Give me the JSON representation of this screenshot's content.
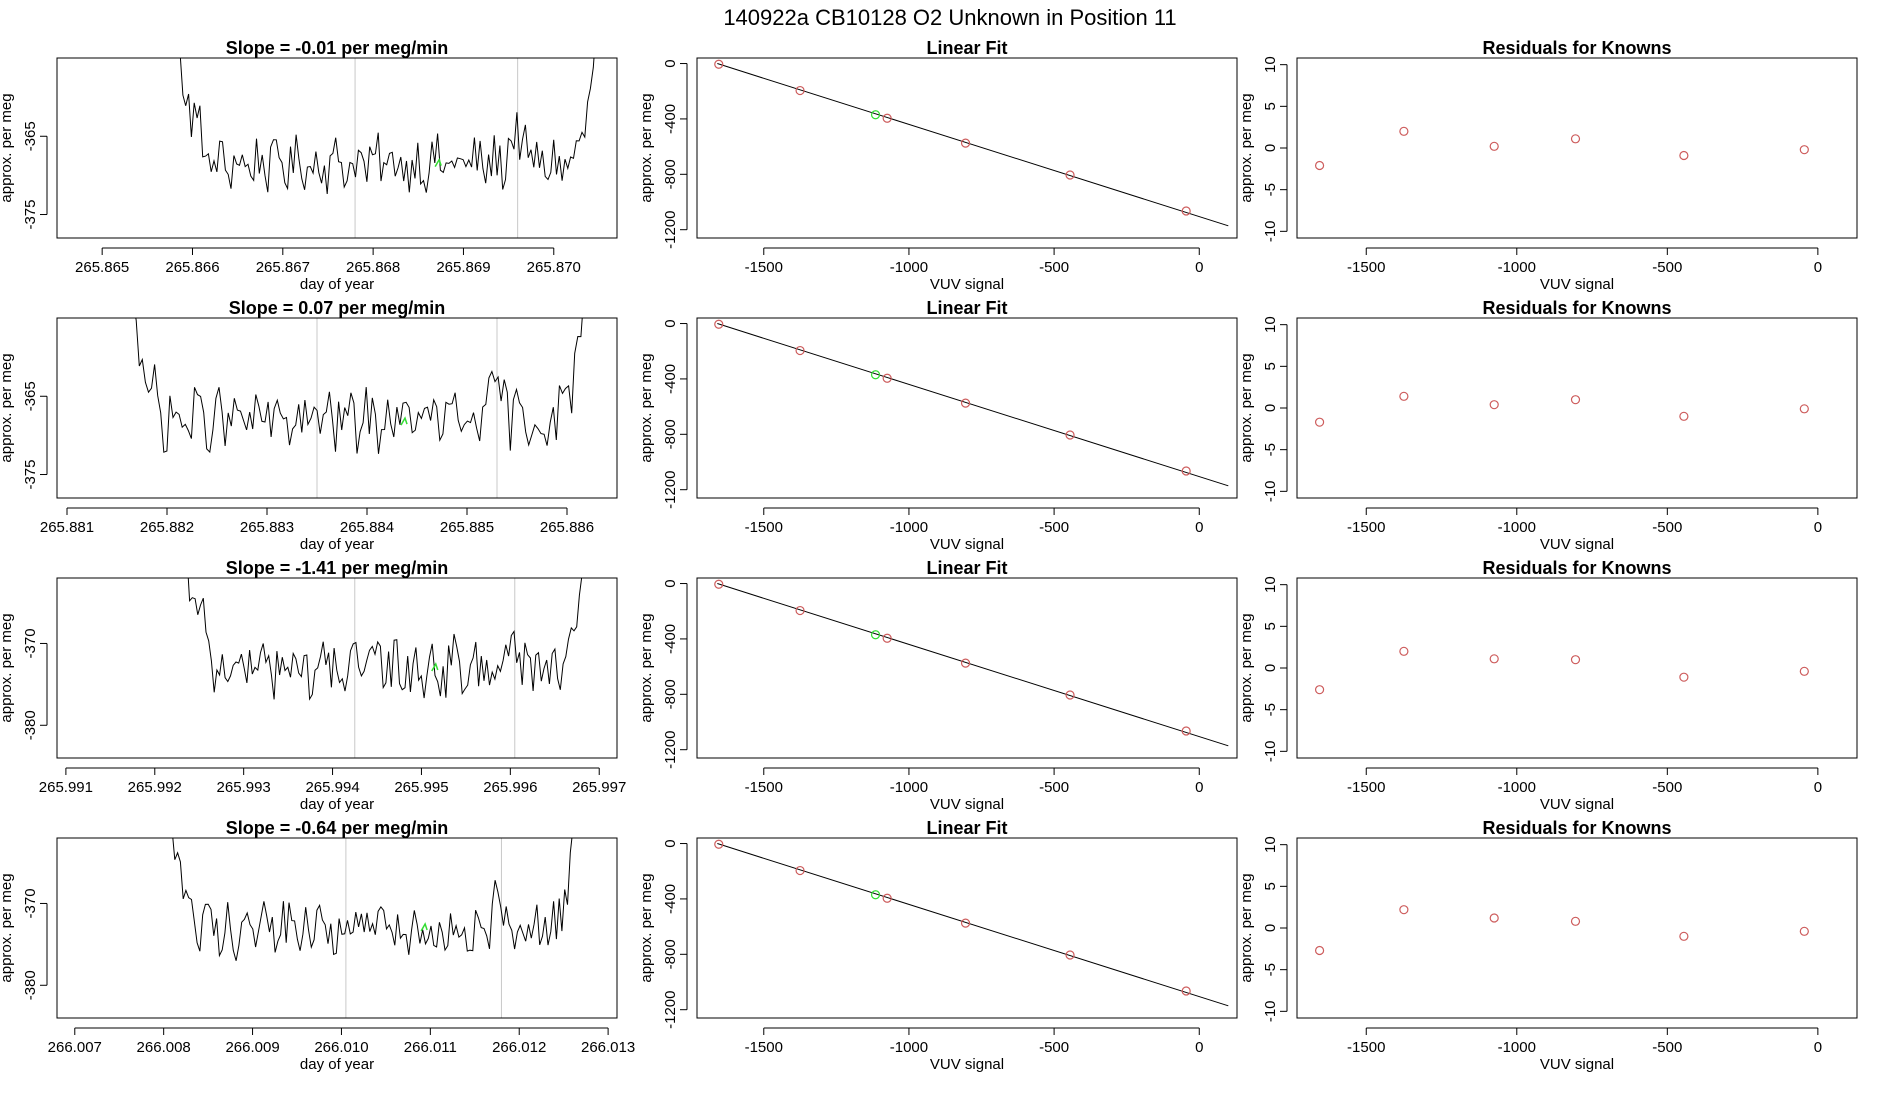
{
  "suptitle": "140922a      CB10128    O2 Unknown in Position  11",
  "colors": {
    "known": "#cd5c5c",
    "unknown": "#33dd33",
    "series": "#000000",
    "vline": "#c8c8c8"
  },
  "chart_data": [
    {
      "row": 0,
      "type": "line",
      "title": "Slope =  -0.01  per meg/min",
      "xlabel": "day of year",
      "ylabel": "approx. per meg",
      "xlim": [
        265.8645,
        265.8707
      ],
      "ylim": [
        -378,
        -355
      ],
      "xticks": [
        265.865,
        265.866,
        265.867,
        265.868,
        265.869,
        265.87
      ],
      "xtick_labels": [
        "265.865",
        "265.866",
        "265.867",
        "265.868",
        "265.869",
        "265.870"
      ],
      "yticks": [
        -375,
        -365
      ],
      "ytick_labels": [
        "-375",
        "-365"
      ],
      "x_start": 265.8658,
      "x_end": 265.8705,
      "vlines": [
        265.8678,
        265.8696
      ],
      "unknown_point": {
        "x": 265.86872,
        "y": -368.5
      },
      "mean": -368.5,
      "noise": 3.0
    },
    {
      "row": 0,
      "type": "scatter",
      "title": "Linear Fit",
      "xlabel": "VUV signal",
      "ylabel": "approx. per meg",
      "xlim": [
        -1730,
        130
      ],
      "ylim": [
        -1260,
        40
      ],
      "xticks": [
        -1500,
        -1000,
        -500,
        0
      ],
      "xtick_labels": [
        "-1500",
        "-1000",
        "-500",
        "0"
      ],
      "yticks": [
        0,
        -400,
        -800,
        -1200
      ],
      "ytick_labels": [
        "0",
        "-400",
        "-800",
        "-1200"
      ],
      "fit_line": {
        "x": [
          -1660,
          100
        ],
        "y": [
          0,
          -1172
        ]
      },
      "known_points": {
        "x": [
          -1655,
          -1375,
          -1075,
          -805,
          -445,
          -45
        ],
        "y": [
          -5,
          -195,
          -395,
          -575,
          -805,
          -1065
        ]
      },
      "unknown_point": {
        "x": -1115,
        "y": -370
      }
    },
    {
      "row": 0,
      "type": "scatter",
      "title": "Residuals for Knowns",
      "xlabel": "VUV signal",
      "ylabel": "approx. per meg",
      "xlim": [
        -1730,
        130
      ],
      "ylim": [
        -10.8,
        10.8
      ],
      "xticks": [
        -1500,
        -1000,
        -500,
        0
      ],
      "xtick_labels": [
        "-1500",
        "-1000",
        "-500",
        "0"
      ],
      "yticks": [
        10,
        5,
        0,
        -5,
        -10
      ],
      "ytick_labels": [
        "10",
        "5",
        "0",
        "-5",
        "-10"
      ],
      "known_points": {
        "x": [
          -1655,
          -1375,
          -1075,
          -805,
          -445,
          -45
        ],
        "y": [
          -2.1,
          2.0,
          0.2,
          1.1,
          -0.9,
          -0.2
        ]
      }
    },
    {
      "row": 1,
      "type": "line",
      "title": "Slope =  0.07  per meg/min",
      "xlabel": "day of year",
      "ylabel": "approx. per meg",
      "xlim": [
        265.8809,
        265.8865
      ],
      "ylim": [
        -378,
        -355
      ],
      "xticks": [
        265.881,
        265.882,
        265.883,
        265.884,
        265.885,
        265.886
      ],
      "xtick_labels": [
        "265.881",
        "265.882",
        "265.883",
        "265.884",
        "265.885",
        "265.886"
      ],
      "yticks": [
        -375,
        -365
      ],
      "ytick_labels": [
        "-375",
        "-365"
      ],
      "x_start": 265.8816,
      "x_end": 265.8862,
      "vlines": [
        265.8835,
        265.8853
      ],
      "unknown_point": {
        "x": 265.88437,
        "y": -368.3
      },
      "mean": -368.0,
      "noise": 3.3
    },
    {
      "row": 1,
      "type": "scatter",
      "title": "Linear Fit",
      "xlabel": "VUV signal",
      "ylabel": "approx. per meg",
      "xlim": [
        -1730,
        130
      ],
      "ylim": [
        -1260,
        40
      ],
      "xticks": [
        -1500,
        -1000,
        -500,
        0
      ],
      "xtick_labels": [
        "-1500",
        "-1000",
        "-500",
        "0"
      ],
      "yticks": [
        0,
        -400,
        -800,
        -1200
      ],
      "ytick_labels": [
        "0",
        "-400",
        "-800",
        "-1200"
      ],
      "fit_line": {
        "x": [
          -1660,
          100
        ],
        "y": [
          0,
          -1172
        ]
      },
      "known_points": {
        "x": [
          -1655,
          -1375,
          -1075,
          -805,
          -445,
          -45
        ],
        "y": [
          -5,
          -195,
          -395,
          -575,
          -805,
          -1065
        ]
      },
      "unknown_point": {
        "x": -1115,
        "y": -370
      }
    },
    {
      "row": 1,
      "type": "scatter",
      "title": "Residuals for Knowns",
      "xlabel": "VUV signal",
      "ylabel": "approx. per meg",
      "xlim": [
        -1730,
        130
      ],
      "ylim": [
        -10.8,
        10.8
      ],
      "xticks": [
        -1500,
        -1000,
        -500,
        0
      ],
      "xtick_labels": [
        "-1500",
        "-1000",
        "-500",
        "0"
      ],
      "yticks": [
        10,
        5,
        0,
        -5,
        -10
      ],
      "ytick_labels": [
        "10",
        "5",
        "0",
        "-5",
        "-10"
      ],
      "known_points": {
        "x": [
          -1655,
          -1375,
          -1075,
          -805,
          -445,
          -45
        ],
        "y": [
          -1.7,
          1.4,
          0.4,
          1.0,
          -1.0,
          -0.1
        ]
      }
    },
    {
      "row": 2,
      "type": "line",
      "title": "Slope =  -1.41  per meg/min",
      "xlabel": "day of year",
      "ylabel": "approx. per meg",
      "xlim": [
        265.9909,
        265.9972
      ],
      "ylim": [
        -384,
        -362
      ],
      "xticks": [
        265.991,
        265.992,
        265.993,
        265.994,
        265.995,
        265.996,
        265.997
      ],
      "xtick_labels": [
        "265.991",
        "265.992",
        "265.993",
        "265.994",
        "265.995",
        "265.996",
        "265.997"
      ],
      "yticks": [
        -380,
        -370
      ],
      "ytick_labels": [
        "-380",
        "-370"
      ],
      "x_start": 265.9923,
      "x_end": 265.9969,
      "vlines": [
        265.99425,
        265.99605
      ],
      "unknown_point": {
        "x": 265.99515,
        "y": -373.0
      },
      "mean": -373.0,
      "noise": 3.2
    },
    {
      "row": 2,
      "type": "scatter",
      "title": "Linear Fit",
      "xlabel": "VUV signal",
      "ylabel": "approx. per meg",
      "xlim": [
        -1730,
        130
      ],
      "ylim": [
        -1260,
        40
      ],
      "xticks": [
        -1500,
        -1000,
        -500,
        0
      ],
      "xtick_labels": [
        "-1500",
        "-1000",
        "-500",
        "0"
      ],
      "yticks": [
        0,
        -400,
        -800,
        -1200
      ],
      "ytick_labels": [
        "0",
        "-400",
        "-800",
        "-1200"
      ],
      "fit_line": {
        "x": [
          -1660,
          100
        ],
        "y": [
          0,
          -1172
        ]
      },
      "known_points": {
        "x": [
          -1655,
          -1375,
          -1075,
          -805,
          -445,
          -45
        ],
        "y": [
          -5,
          -195,
          -395,
          -575,
          -805,
          -1065
        ]
      },
      "unknown_point": {
        "x": -1115,
        "y": -370
      }
    },
    {
      "row": 2,
      "type": "scatter",
      "title": "Residuals for Knowns",
      "xlabel": "VUV signal",
      "ylabel": "approx. per meg",
      "xlim": [
        -1730,
        130
      ],
      "ylim": [
        -10.8,
        10.8
      ],
      "xticks": [
        -1500,
        -1000,
        -500,
        0
      ],
      "xtick_labels": [
        "-1500",
        "-1000",
        "-500",
        "0"
      ],
      "yticks": [
        10,
        5,
        0,
        -5,
        -10
      ],
      "ytick_labels": [
        "10",
        "5",
        "0",
        "-5",
        "-10"
      ],
      "known_points": {
        "x": [
          -1655,
          -1375,
          -1075,
          -805,
          -445,
          -45
        ],
        "y": [
          -2.6,
          2.0,
          1.1,
          1.0,
          -1.1,
          -0.4
        ]
      }
    },
    {
      "row": 3,
      "type": "line",
      "title": "Slope =  -0.64  per meg/min",
      "xlabel": "day of year",
      "ylabel": "approx. per meg",
      "xlim": [
        266.0068,
        266.0131
      ],
      "ylim": [
        -384,
        -362
      ],
      "xticks": [
        266.007,
        266.008,
        266.009,
        266.01,
        266.011,
        266.012,
        266.013
      ],
      "xtick_labels": [
        "266.007",
        "266.008",
        "266.009",
        "266.010",
        "266.011",
        "266.012",
        "266.013"
      ],
      "yticks": [
        -380,
        -370
      ],
      "ytick_labels": [
        "-380",
        "-370"
      ],
      "x_start": 266.008,
      "x_end": 266.0127,
      "vlines": [
        266.01005,
        266.0118
      ],
      "unknown_point": {
        "x": 266.01093,
        "y": -373.0
      },
      "mean": -373.0,
      "noise": 3.0
    },
    {
      "row": 3,
      "type": "scatter",
      "title": "Linear Fit",
      "xlabel": "VUV signal",
      "ylabel": "approx. per meg",
      "xlim": [
        -1730,
        130
      ],
      "ylim": [
        -1260,
        40
      ],
      "xticks": [
        -1500,
        -1000,
        -500,
        0
      ],
      "xtick_labels": [
        "-1500",
        "-1000",
        "-500",
        "0"
      ],
      "yticks": [
        0,
        -400,
        -800,
        -1200
      ],
      "ytick_labels": [
        "0",
        "-400",
        "-800",
        "-1200"
      ],
      "fit_line": {
        "x": [
          -1660,
          100
        ],
        "y": [
          0,
          -1172
        ]
      },
      "known_points": {
        "x": [
          -1655,
          -1375,
          -1075,
          -805,
          -445,
          -45
        ],
        "y": [
          -5,
          -195,
          -395,
          -575,
          -805,
          -1065
        ]
      },
      "unknown_point": {
        "x": -1115,
        "y": -370
      }
    },
    {
      "row": 3,
      "type": "scatter",
      "title": "Residuals for Knowns",
      "xlabel": "VUV signal",
      "ylabel": "approx. per meg",
      "xlim": [
        -1730,
        130
      ],
      "ylim": [
        -10.8,
        10.8
      ],
      "xticks": [
        -1500,
        -1000,
        -500,
        0
      ],
      "xtick_labels": [
        "-1500",
        "-1000",
        "-500",
        "0"
      ],
      "yticks": [
        10,
        5,
        0,
        -5,
        -10
      ],
      "ytick_labels": [
        "10",
        "5",
        "0",
        "-5",
        "-10"
      ],
      "known_points": {
        "x": [
          -1655,
          -1375,
          -1075,
          -805,
          -445,
          -45
        ],
        "y": [
          -2.7,
          2.2,
          1.2,
          0.8,
          -1.0,
          -0.4
        ]
      }
    }
  ]
}
